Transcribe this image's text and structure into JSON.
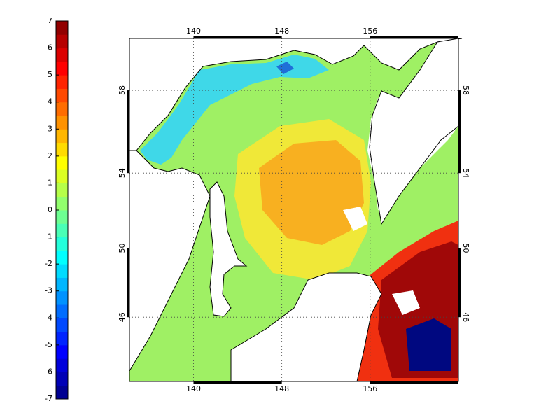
{
  "colorbar": {
    "lim": [
      -7,
      7
    ],
    "ticks": [
      -7,
      -6,
      -5,
      -4,
      -3,
      -2,
      -1,
      0,
      1,
      2,
      3,
      4,
      5,
      6,
      7
    ]
  },
  "map": {
    "lon_lim": [
      134.2,
      164
    ],
    "lat_lim": [
      42,
      60.3
    ],
    "lon_ticks": [
      140,
      148,
      156
    ],
    "lat_ticks": [
      46,
      50,
      54,
      58
    ],
    "grid": true
  }
}
